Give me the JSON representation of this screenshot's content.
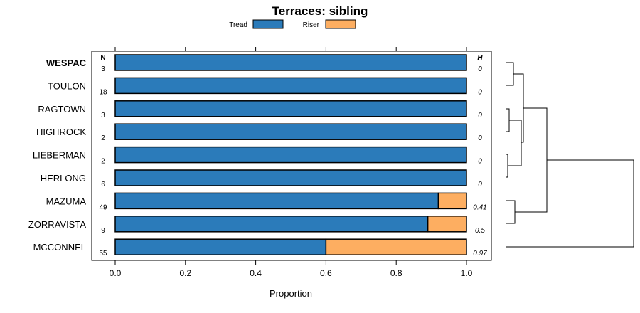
{
  "chart_data": {
    "type": "bar",
    "orientation": "horizontal",
    "stacked": true,
    "title": "Terraces: sibling",
    "xlabel": "Proportion",
    "ylabel": "",
    "xlim": [
      0,
      1
    ],
    "x_ticks": [
      "0.0",
      "0.2",
      "0.4",
      "0.6",
      "0.8",
      "1.0"
    ],
    "x_tick_values": [
      0,
      0.2,
      0.4,
      0.6,
      0.8,
      1.0
    ],
    "legend": [
      {
        "name": "Tread",
        "color": "#2b7bba"
      },
      {
        "name": "Riser",
        "color": "#fdae61"
      }
    ],
    "legend_position": "top",
    "n_header": "N",
    "h_header": "H",
    "categories": [
      "WESPAC",
      "TOULON",
      "RAGTOWN",
      "HIGHROCK",
      "LIEBERMAN",
      "HERLONG",
      "MAZUMA",
      "ZORRAVISTA",
      "MCCONNEL"
    ],
    "highlighted_category": "WESPAC",
    "series": [
      {
        "name": "Tread",
        "values": [
          1.0,
          1.0,
          1.0,
          1.0,
          1.0,
          1.0,
          0.92,
          0.89,
          0.6
        ]
      },
      {
        "name": "Riser",
        "values": [
          0.0,
          0.0,
          0.0,
          0.0,
          0.0,
          0.0,
          0.08,
          0.11,
          0.4
        ]
      }
    ],
    "n_values": [
      "3",
      "18",
      "3",
      "2",
      "2",
      "6",
      "49",
      "9",
      "55"
    ],
    "h_values": [
      "0",
      "0",
      "0",
      "0",
      "0",
      "0",
      "0.41",
      "0.5",
      "0.97"
    ],
    "dendrogram": true
  }
}
